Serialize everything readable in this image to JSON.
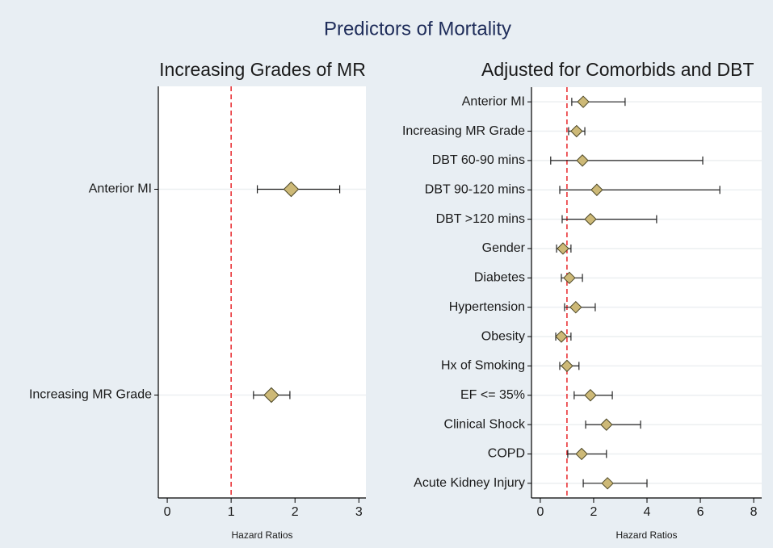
{
  "title": "Predictors of Mortality",
  "chart_data": [
    {
      "type": "forest",
      "title": "Increasing Grades of MR",
      "x_label": "Hazard Ratios",
      "categories": [
        "Anterior MI",
        "Increasing MR Grade"
      ],
      "values": [
        1.94,
        1.63
      ],
      "lower": [
        1.41,
        1.35
      ],
      "upper": [
        2.7,
        1.92
      ],
      "xlim": [
        -0.14,
        3.11
      ],
      "xticks": [
        0,
        1,
        2,
        3
      ],
      "reference": 1,
      "reference_color": "#e8262a",
      "color": "#cdb977",
      "grid": true
    },
    {
      "type": "forest",
      "title": "Adjusted for Comorbids and DBT",
      "x_label": "Hazard Ratios",
      "categories": [
        "Anterior MI",
        "Increasing MR Grade",
        "DBT 60-90 mins",
        "DBT 90-120 mins",
        "DBT >120 mins",
        "Gender",
        "Diabetes",
        "Hypertension",
        "Obesity",
        "Hx of Smoking",
        "EF <= 35%",
        "Clinical Shock",
        "COPD",
        "Acute Kidney Injury"
      ],
      "values": [
        1.61,
        1.36,
        1.58,
        2.12,
        1.88,
        0.85,
        1.09,
        1.33,
        0.79,
        1.0,
        1.88,
        2.48,
        1.55,
        2.52
      ],
      "lower": [
        1.18,
        1.06,
        0.39,
        0.73,
        0.82,
        0.61,
        0.79,
        0.91,
        0.58,
        0.73,
        1.27,
        1.7,
        1.03,
        1.61
      ],
      "upper": [
        3.18,
        1.67,
        6.09,
        6.73,
        4.36,
        1.15,
        1.58,
        2.06,
        1.15,
        1.45,
        2.7,
        3.76,
        2.48,
        4.0
      ],
      "xlim": [
        -0.33,
        8.3
      ],
      "xticks": [
        0,
        2,
        4,
        6,
        8
      ],
      "reference": 1,
      "reference_color": "#e8262a",
      "color": "#cdb977",
      "grid": true
    }
  ]
}
